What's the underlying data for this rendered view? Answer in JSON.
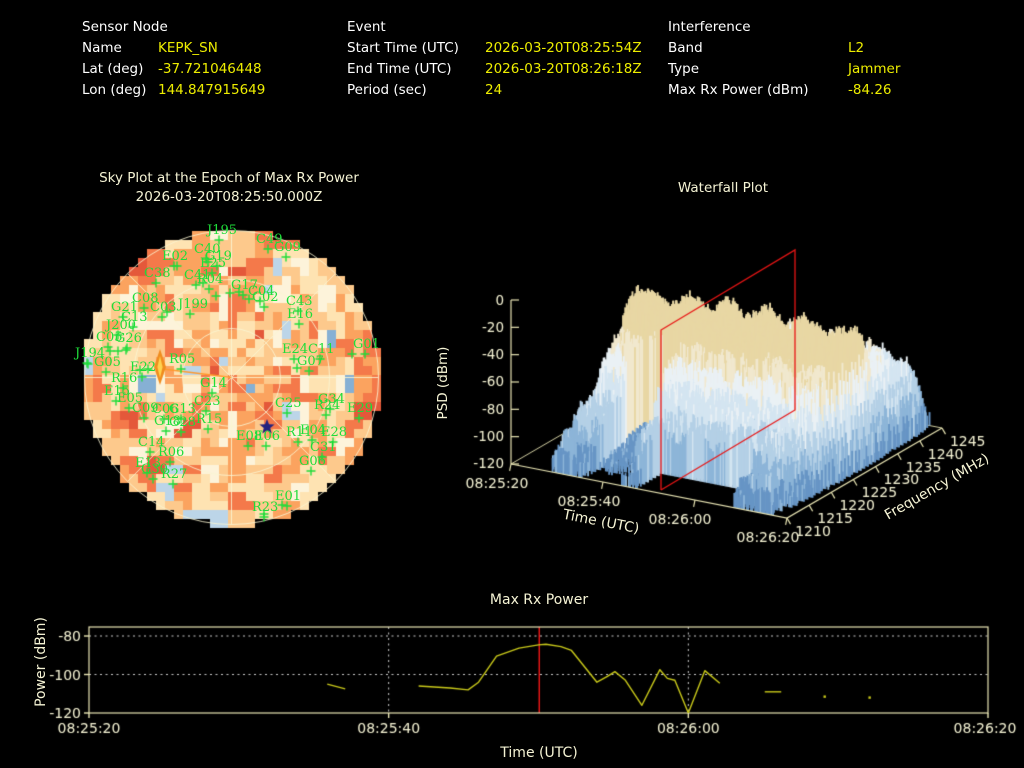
{
  "header": {
    "sensor": {
      "title": "Sensor Node",
      "rows": [
        {
          "label": "Name",
          "value": "KEPK_SN"
        },
        {
          "label": "Lat (deg)",
          "value": "-37.721046448"
        },
        {
          "label": "Lon (deg)",
          "value": "144.847915649"
        }
      ]
    },
    "event": {
      "title": "Event",
      "rows": [
        {
          "label": "Start Time (UTC)",
          "value": "2026-03-20T08:25:54Z"
        },
        {
          "label": "End Time (UTC)",
          "value": "2026-03-20T08:26:18Z"
        },
        {
          "label": "Period (sec)",
          "value": "24"
        }
      ]
    },
    "interference": {
      "title": "Interference",
      "rows": [
        {
          "label": "Band",
          "value": "L2"
        },
        {
          "label": "Type",
          "value": "Jammer"
        },
        {
          "label": "Max Rx Power (dBm)",
          "value": "-84.26"
        }
      ]
    }
  },
  "colors": {
    "background": "#000000",
    "header_label": "#ffffff",
    "header_value": "#eded00",
    "axis_text": "#f5f3d4",
    "axis_line": "#e9e5b4",
    "satellite_green": "#1fdd3a",
    "power_line": "#c9c91a",
    "epoch_red": "#f51818",
    "grid_dotted": "#cccccc"
  },
  "chart_data": [
    {
      "type": "heatmap",
      "name": "sky-plot",
      "title": "Sky Plot at the Epoch of Max Rx Power",
      "subtitle": "2026-03-20T08:25:50.000Z",
      "projection": "polar-azimuth-elevation",
      "heatmap_palette": [
        "#4f86bd",
        "#86b0d4",
        "#bcd5e8",
        "#fdf3da",
        "#fee3b2",
        "#fdc98c",
        "#fba35f",
        "#f4794a",
        "#e4583a"
      ],
      "grid_color": "#f7f2cc",
      "satellite_color": "#1fdd3a",
      "jammer_marker": {
        "x": 160,
        "y": 367,
        "color": "#f08c1e",
        "core_color": "#ffd24f"
      },
      "bearing_line_color": "#ff9a2e",
      "star_marker": {
        "x": 267,
        "y": 427,
        "color": "#23237f"
      },
      "satellites": [
        {
          "id": "J195",
          "x": 207,
          "y": 224
        },
        {
          "id": "C49",
          "x": 256,
          "y": 233
        },
        {
          "id": "G09",
          "x": 274,
          "y": 241
        },
        {
          "id": "C40",
          "x": 194,
          "y": 243
        },
        {
          "id": "G19",
          "x": 205,
          "y": 250
        },
        {
          "id": "E25",
          "x": 200,
          "y": 257
        },
        {
          "id": "E02",
          "x": 162,
          "y": 250
        },
        {
          "id": "C38",
          "x": 144,
          "y": 267
        },
        {
          "id": "C41",
          "x": 184,
          "y": 269
        },
        {
          "id": "R04",
          "x": 197,
          "y": 273
        },
        {
          "id": "G17",
          "x": 231,
          "y": 279
        },
        {
          "id": "C04",
          "x": 248,
          "y": 285
        },
        {
          "id": "C02",
          "x": 252,
          "y": 291
        },
        {
          "id": "C43",
          "x": 286,
          "y": 295
        },
        {
          "id": "C08",
          "x": 132,
          "y": 292
        },
        {
          "id": "G21",
          "x": 111,
          "y": 301
        },
        {
          "id": "C03",
          "x": 150,
          "y": 301
        },
        {
          "id": "J199",
          "x": 178,
          "y": 298
        },
        {
          "id": "C13",
          "x": 121,
          "y": 311
        },
        {
          "id": "E16",
          "x": 287,
          "y": 308
        },
        {
          "id": "J200",
          "x": 106,
          "y": 319
        },
        {
          "id": "C05",
          "x": 96,
          "y": 331
        },
        {
          "id": "G26",
          "x": 115,
          "y": 332
        },
        {
          "id": "J194",
          "x": 75,
          "y": 347
        },
        {
          "id": "G05",
          "x": 94,
          "y": 356
        },
        {
          "id": "E22",
          "x": 130,
          "y": 361
        },
        {
          "id": "R05",
          "x": 169,
          "y": 353
        },
        {
          "id": "R16",
          "x": 111,
          "y": 372
        },
        {
          "id": "E15",
          "x": 104,
          "y": 385
        },
        {
          "id": "E05",
          "x": 117,
          "y": 392
        },
        {
          "id": "C09",
          "x": 132,
          "y": 402
        },
        {
          "id": "C06",
          "x": 152,
          "y": 403
        },
        {
          "id": "G13",
          "x": 169,
          "y": 403
        },
        {
          "id": "G18",
          "x": 154,
          "y": 415
        },
        {
          "id": "G28",
          "x": 169,
          "y": 416
        },
        {
          "id": "C23",
          "x": 194,
          "y": 395
        },
        {
          "id": "R15",
          "x": 196,
          "y": 413
        },
        {
          "id": "G14",
          "x": 200,
          "y": 377
        },
        {
          "id": "C14",
          "x": 138,
          "y": 436
        },
        {
          "id": "R06",
          "x": 158,
          "y": 446
        },
        {
          "id": "E13",
          "x": 135,
          "y": 457
        },
        {
          "id": "G30",
          "x": 141,
          "y": 463
        },
        {
          "id": "R27",
          "x": 161,
          "y": 468
        },
        {
          "id": "E08",
          "x": 236,
          "y": 430
        },
        {
          "id": "E06",
          "x": 254,
          "y": 430
        },
        {
          "id": "C25",
          "x": 275,
          "y": 397
        },
        {
          "id": "G34",
          "x": 318,
          "y": 393
        },
        {
          "id": "R24",
          "x": 314,
          "y": 399
        },
        {
          "id": "E29",
          "x": 347,
          "y": 402
        },
        {
          "id": "R11",
          "x": 286,
          "y": 426
        },
        {
          "id": "E04",
          "x": 300,
          "y": 424
        },
        {
          "id": "E28",
          "x": 321,
          "y": 426
        },
        {
          "id": "C31",
          "x": 310,
          "y": 441
        },
        {
          "id": "G06",
          "x": 299,
          "y": 455
        },
        {
          "id": "G07",
          "x": 297,
          "y": 355
        },
        {
          "id": "E24",
          "x": 282,
          "y": 343
        },
        {
          "id": "C11",
          "x": 308,
          "y": 343
        },
        {
          "id": "G01",
          "x": 353,
          "y": 338
        },
        {
          "id": "E01",
          "x": 275,
          "y": 490
        },
        {
          "id": "R23",
          "x": 252,
          "y": 501
        }
      ],
      "extra_marks": [
        [
          110,
          351
        ],
        [
          118,
          351
        ],
        [
          126,
          350
        ],
        [
          88,
          364
        ],
        [
          140,
          370
        ],
        [
          148,
          369
        ],
        [
          177,
          266
        ],
        [
          208,
          262
        ],
        [
          230,
          293
        ],
        [
          239,
          292
        ],
        [
          216,
          296
        ],
        [
          352,
          354
        ],
        [
          297,
          368
        ],
        [
          282,
          505
        ],
        [
          264,
          514
        ],
        [
          203,
          283
        ],
        [
          249,
          299
        ],
        [
          167,
          312
        ]
      ]
    },
    {
      "type": "surface",
      "name": "waterfall",
      "title": "Waterfall Plot",
      "xlabel": "Time (UTC)",
      "ylabel": "Frequency (MHz)",
      "zlabel": "PSD (dBm)",
      "time_ticks": [
        "08:25:20",
        "08:25:40",
        "08:26:00",
        "08:26:20"
      ],
      "freq_ticks": [
        "1210",
        "1215",
        "1220",
        "1225",
        "1230",
        "1235",
        "1240",
        "1245"
      ],
      "psd_ticks": [
        "0",
        "-20",
        "-40",
        "-60",
        "-80",
        "-100",
        "-120"
      ],
      "freq_range_mhz": [
        1210,
        1245
      ],
      "psd_range_dbm": [
        -120,
        0
      ],
      "signal": {
        "center_freq_mhz": 1227.5,
        "bandwidth_mhz": 14,
        "peak_psd_dbm": -30,
        "active_from": "08:25:28",
        "active_to": "08:26:19"
      },
      "epoch_plane": {
        "time": "08:25:50",
        "color": "#e81515"
      },
      "surface_colors": [
        "#6795c5",
        "#8db5d8",
        "#b4d0e6",
        "#d4e5f1",
        "#eaf1f5",
        "#f1e8ce",
        "#e8d7a4"
      ]
    },
    {
      "type": "line",
      "name": "max-rx-power",
      "title": "Max Rx Power",
      "xlabel": "Time (UTC)",
      "ylabel": "Power (dBm)",
      "x_tick_labels": [
        "08:25:20",
        "08:25:40",
        "08:26:00",
        "08:26:20"
      ],
      "x_tick_seconds": [
        0,
        20,
        40,
        60
      ],
      "y_ticks": [
        -80,
        -100,
        -120
      ],
      "ylim": [
        -120,
        -75.4
      ],
      "epoch_second": 30.05,
      "line_color": "#c9c91a",
      "epoch_line_color": "#f51818",
      "segments": [
        [
          [
            15.9,
            -105.0
          ],
          [
            17.1,
            -107.5
          ]
        ],
        [
          [
            22.0,
            -106.0
          ],
          [
            24.1,
            -107.0
          ],
          [
            25.3,
            -108.0
          ],
          [
            26.0,
            -104.0
          ],
          [
            27.2,
            -90.5
          ],
          [
            28.7,
            -86.3
          ],
          [
            30.0,
            -84.6
          ],
          [
            30.5,
            -84.3
          ],
          [
            31.5,
            -85.5
          ],
          [
            32.2,
            -87.5
          ],
          [
            33.9,
            -104.0
          ],
          [
            34.6,
            -101.0
          ],
          [
            35.1,
            -98.5
          ],
          [
            35.8,
            -103.0
          ],
          [
            36.9,
            -116.0
          ],
          [
            38.1,
            -97.5
          ],
          [
            38.6,
            -102.0
          ],
          [
            39.1,
            -103.0
          ],
          [
            40.0,
            -120.0
          ],
          [
            41.1,
            -98.0
          ],
          [
            42.1,
            -104.5
          ]
        ],
        [
          [
            45.1,
            -109.0
          ],
          [
            46.2,
            -109.0
          ]
        ]
      ],
      "dots": [
        [
          49.1,
          -111.5
        ],
        [
          52.1,
          -112.0
        ]
      ]
    }
  ]
}
